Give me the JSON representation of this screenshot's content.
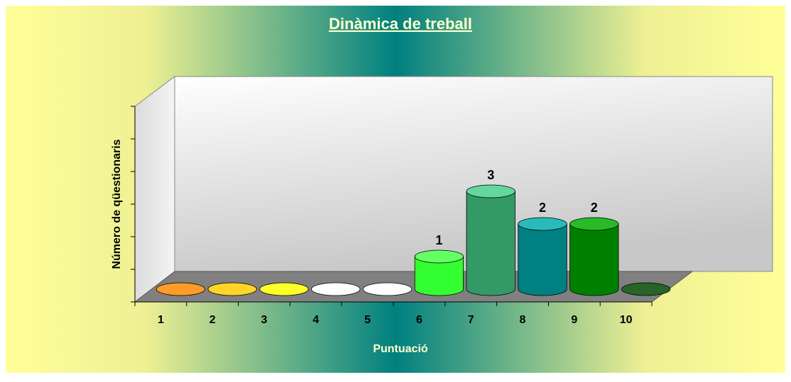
{
  "chart_data": {
    "type": "bar",
    "title": "Dinàmica de treball",
    "x_label": "Puntuació",
    "y_label": "Número de qüestionaris",
    "categories": [
      "1",
      "2",
      "3",
      "4",
      "5",
      "6",
      "7",
      "8",
      "9",
      "10"
    ],
    "values": [
      0,
      0,
      0,
      0,
      0,
      1,
      3,
      2,
      2,
      0
    ],
    "colors": [
      "#c86400",
      "#c89600",
      "#c8c800",
      "#e6e6c8",
      "#c8e6c8",
      "#33ff33",
      "#339966",
      "#008080",
      "#008000",
      "#003300"
    ],
    "ylim": [
      0,
      6
    ],
    "yticks": [
      0,
      1,
      2,
      3,
      4,
      5,
      6
    ]
  }
}
